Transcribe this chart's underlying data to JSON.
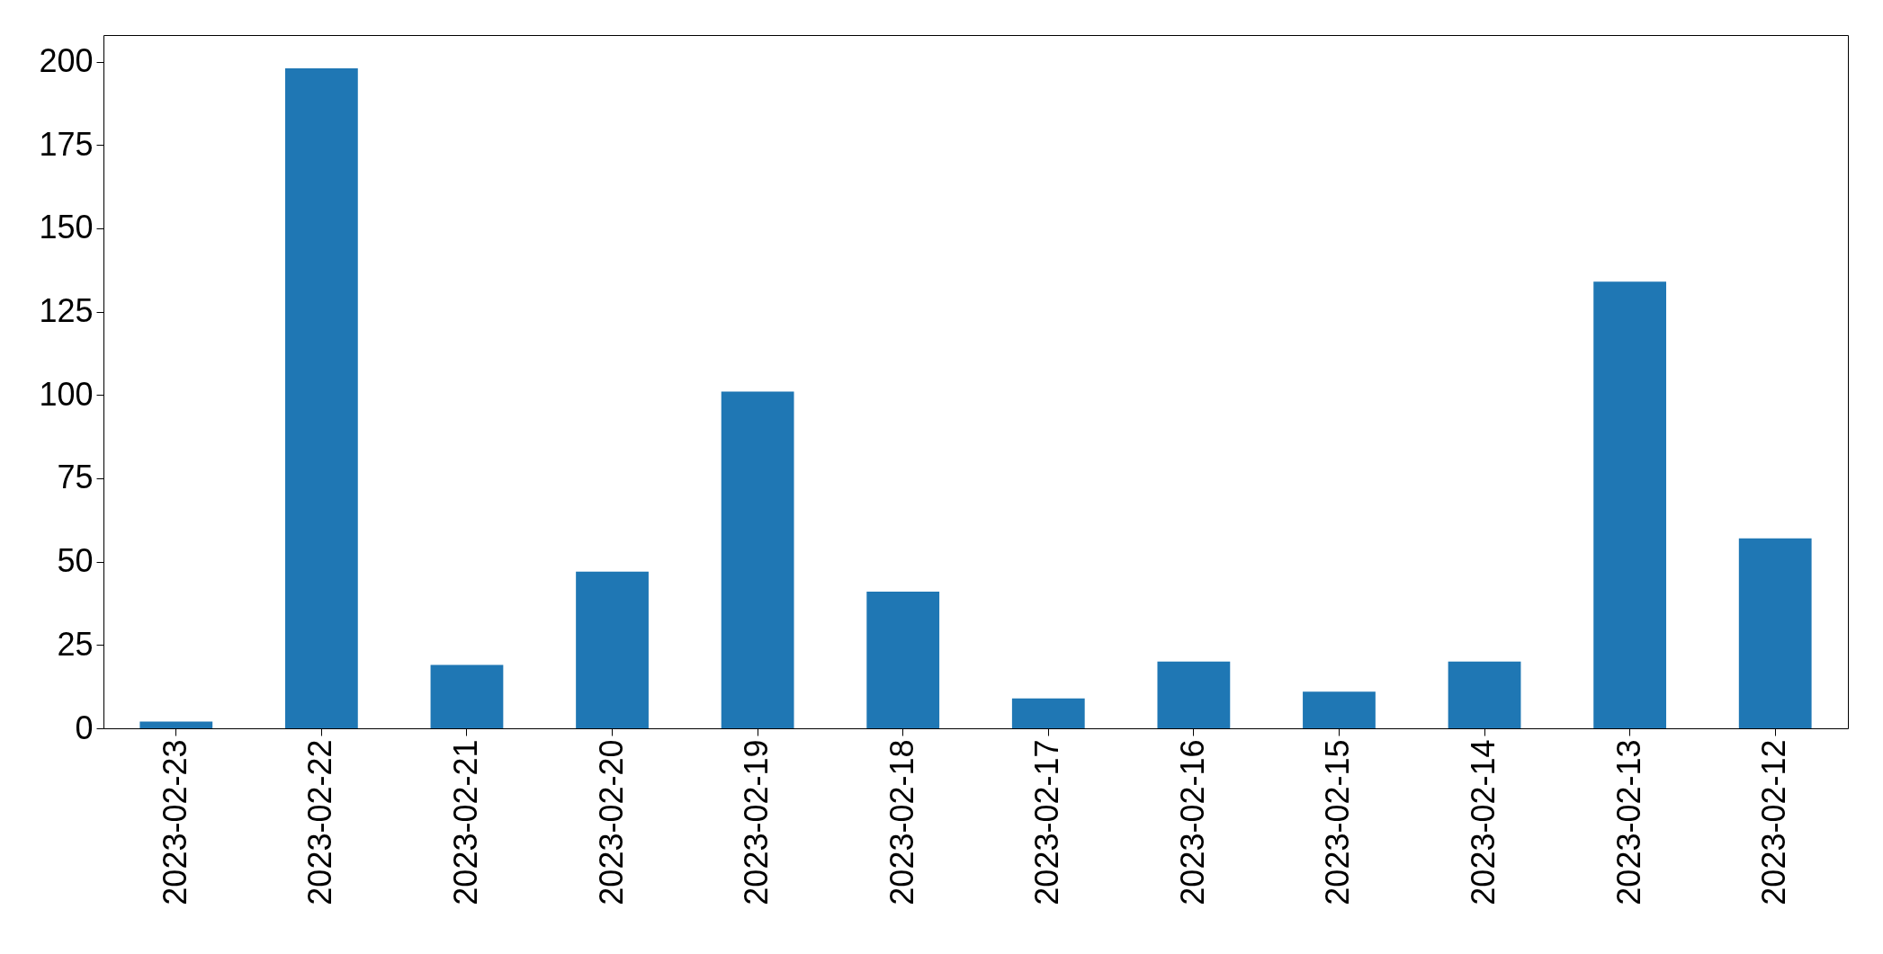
{
  "chart_data": {
    "type": "bar",
    "categories": [
      "2023-02-23",
      "2023-02-22",
      "2023-02-21",
      "2023-02-20",
      "2023-02-19",
      "2023-02-18",
      "2023-02-17",
      "2023-02-16",
      "2023-02-15",
      "2023-02-14",
      "2023-02-13",
      "2023-02-12"
    ],
    "values": [
      2,
      198,
      19,
      47,
      101,
      41,
      9,
      20,
      11,
      20,
      134,
      57
    ],
    "color": "#1f77b4",
    "ylim": [
      0,
      208
    ],
    "yticks": [
      0,
      25,
      50,
      75,
      100,
      125,
      150,
      175,
      200
    ],
    "grid": false
  }
}
